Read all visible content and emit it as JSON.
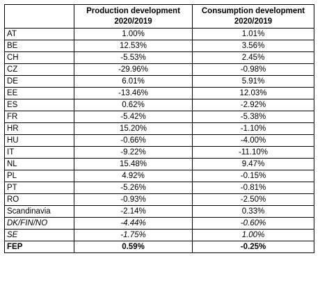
{
  "table": {
    "headers": [
      "",
      [
        "Production development",
        "2020/2019"
      ],
      [
        "Consumption development",
        "2020/2019"
      ]
    ],
    "rows": [
      {
        "country": "AT",
        "production": "1.00%",
        "consumption": "1.01%"
      },
      {
        "country": "BE",
        "production": "12.53%",
        "consumption": "3.56%"
      },
      {
        "country": "CH",
        "production": "-5.53%",
        "consumption": "2.45%"
      },
      {
        "country": "CZ",
        "production": "-29.96%",
        "consumption": "-0.98%"
      },
      {
        "country": "DE",
        "production": "6.01%",
        "consumption": "5.91%"
      },
      {
        "country": "EE",
        "production": "-13.46%",
        "consumption": "12.03%"
      },
      {
        "country": "ES",
        "production": "0.62%",
        "consumption": "-2.92%"
      },
      {
        "country": "FR",
        "production": "-5.42%",
        "consumption": "-5.38%"
      },
      {
        "country": "HR",
        "production": "15.20%",
        "consumption": "-1.10%"
      },
      {
        "country": "HU",
        "production": "-0.66%",
        "consumption": "-4.00%"
      },
      {
        "country": "IT",
        "production": "-9.22%",
        "consumption": "-11.10%"
      },
      {
        "country": "NL",
        "production": "15.48%",
        "consumption": "9.47%"
      },
      {
        "country": "PL",
        "production": "4.92%",
        "consumption": "-0.15%"
      },
      {
        "country": "PT",
        "production": "-5.26%",
        "consumption": "-0.81%"
      },
      {
        "country": "RO",
        "production": "-0.93%",
        "consumption": "-2.50%"
      },
      {
        "country": "Scandinavia",
        "production": "-2.14%",
        "consumption": "0.33%"
      },
      {
        "country": "DK/FIN/NO",
        "production": "-4.44%",
        "consumption": "-0.60%"
      },
      {
        "country": "SE",
        "production": "-1.75%",
        "consumption": "1.00%"
      },
      {
        "country": "FEP",
        "production": "0.59%",
        "consumption": "-0.25%"
      }
    ]
  }
}
